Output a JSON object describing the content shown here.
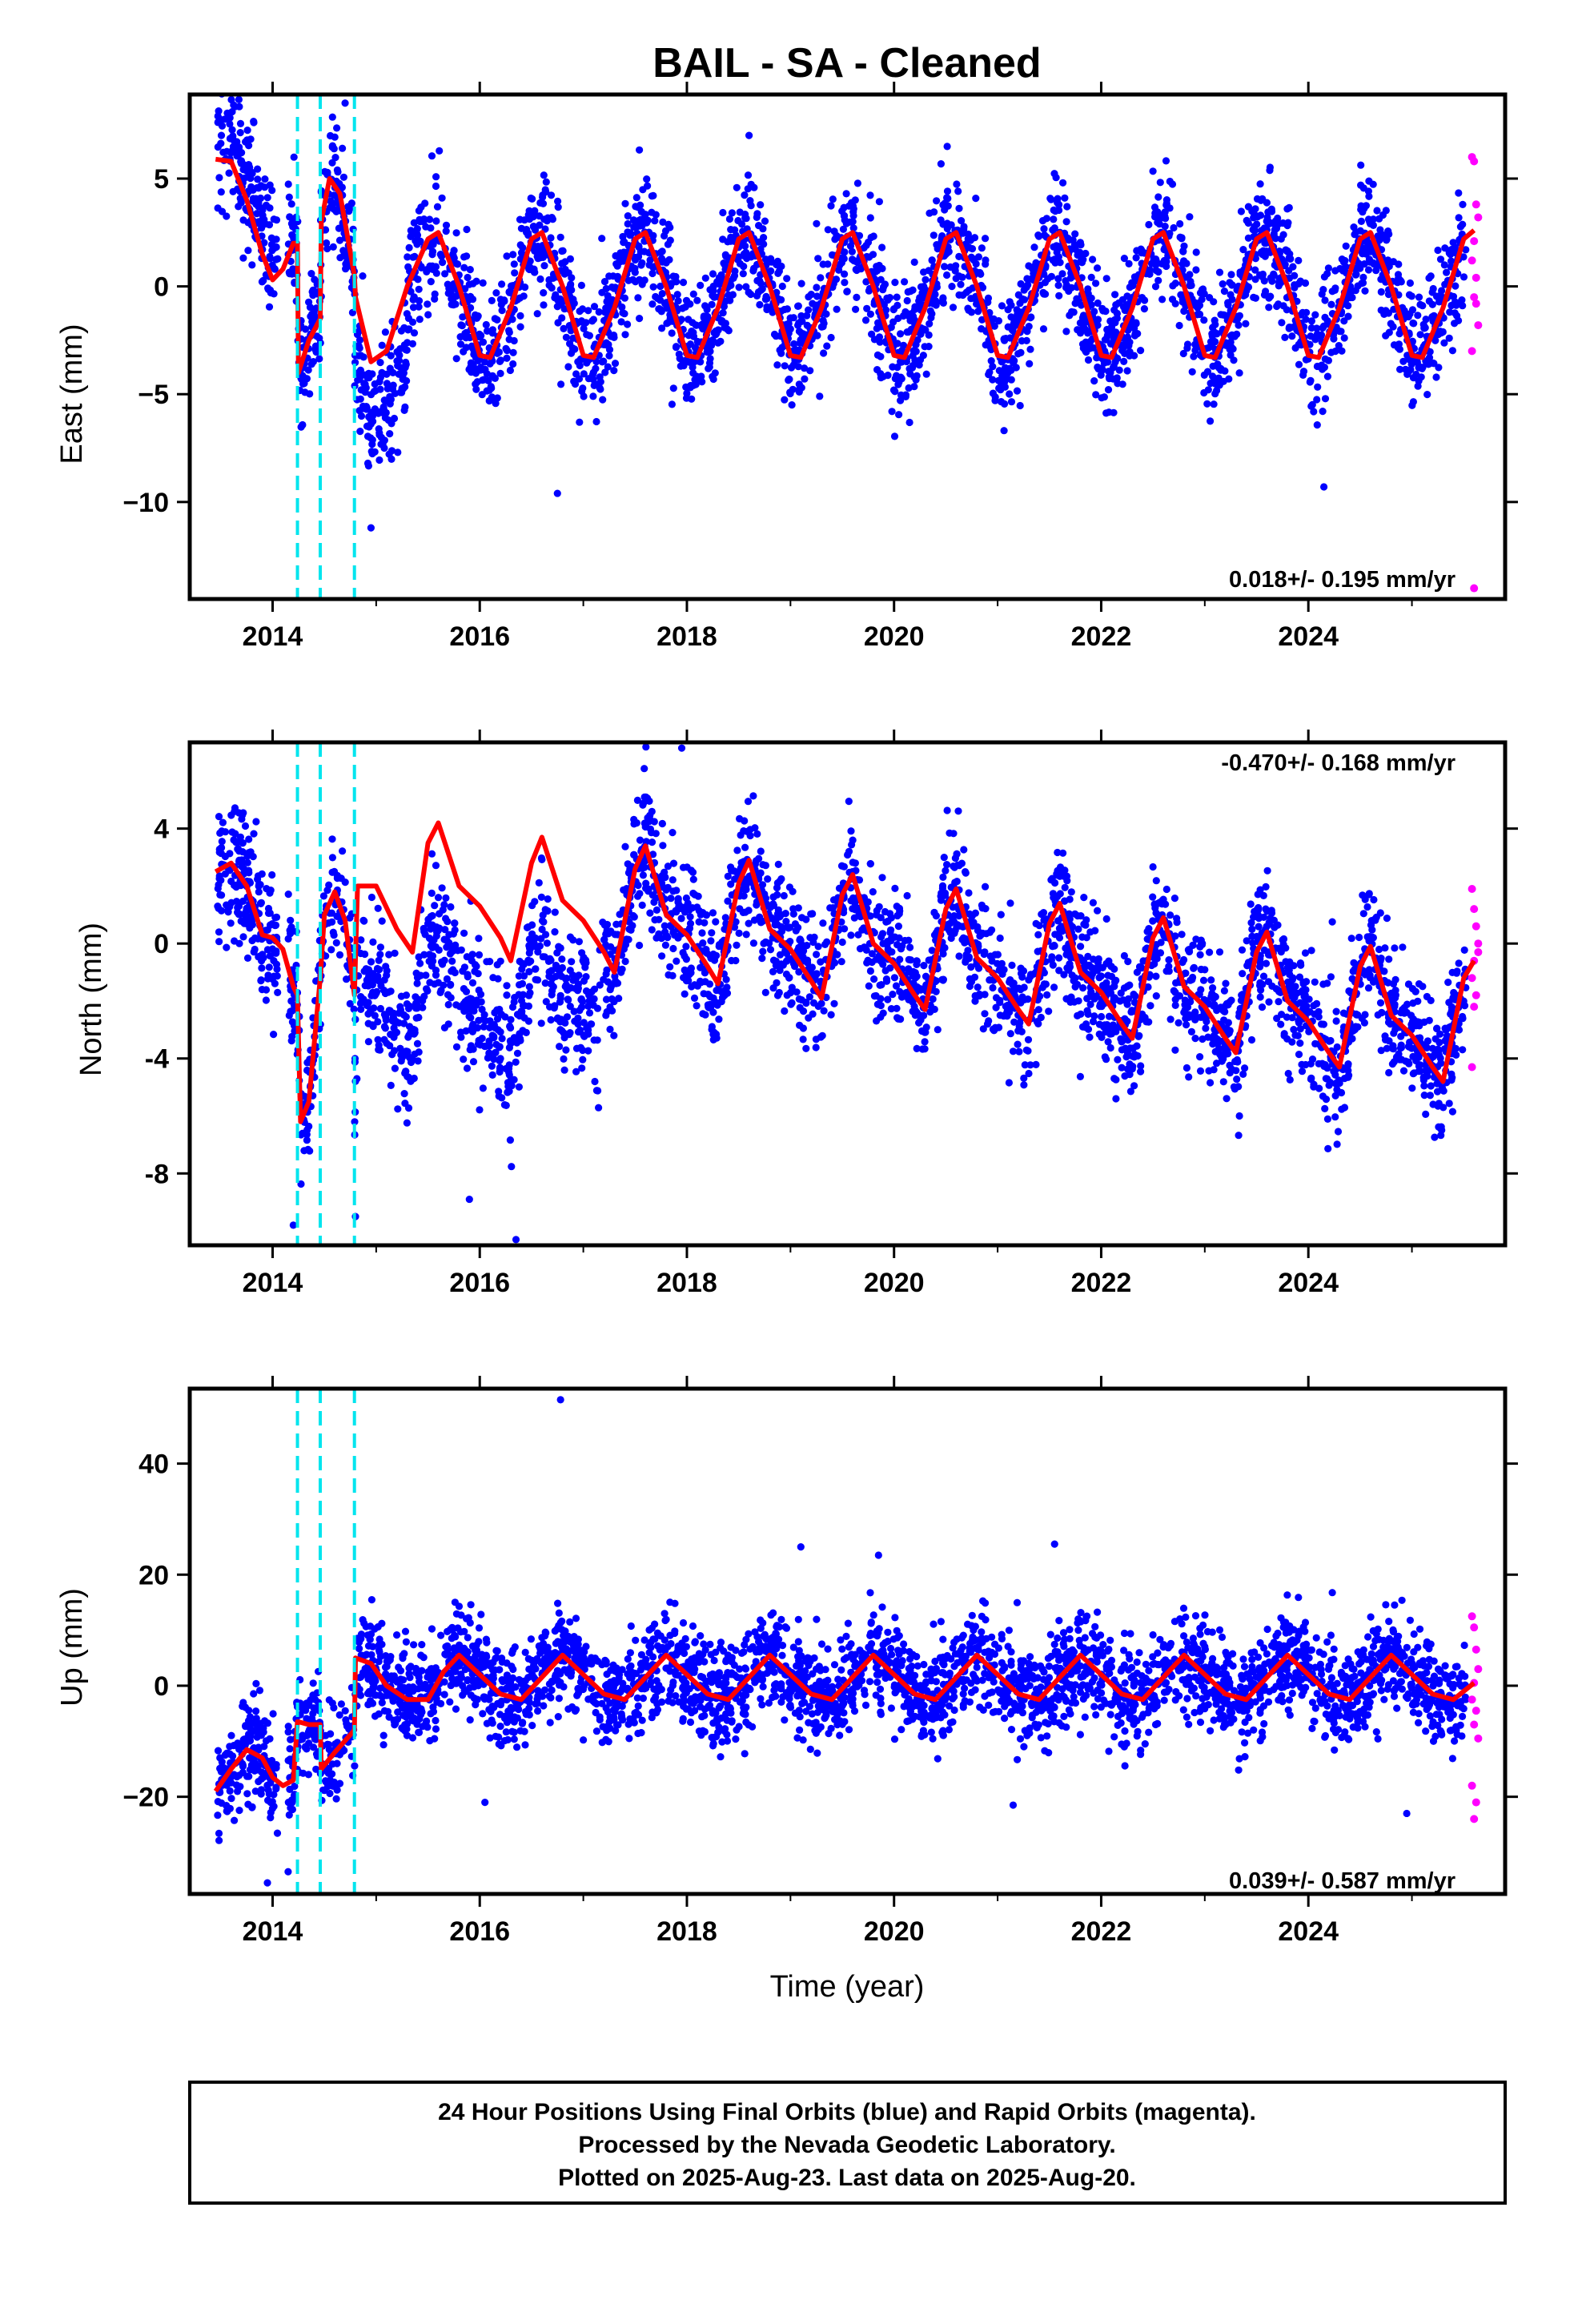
{
  "title": "BAIL  - SA - Cleaned",
  "xlabel": "Time (year)",
  "colors": {
    "final": "#0000ff",
    "rapid": "#ff00ff",
    "model": "#ff0000",
    "offset": "#00e5ee",
    "frame": "#000000"
  },
  "footer": {
    "line1": "24 Hour Positions Using Final Orbits (blue) and Rapid Orbits (magenta).",
    "line2": "Processed by the Nevada Geodetic Laboratory.",
    "line3": "Plotted on 2025-Aug-23. Last data on 2025-Aug-20."
  },
  "chart_data": [
    {
      "type": "scatter",
      "id": "east",
      "title": "BAIL  - SA - Cleaned",
      "ylabel": "East (mm)",
      "xlabel": "",
      "xlim": [
        2013.2,
        2025.9
      ],
      "ylim": [
        -14.5,
        8.9
      ],
      "xticks": [
        2014,
        2016,
        2018,
        2020,
        2022,
        2024
      ],
      "xtick_labels": [
        "2014",
        "2016",
        "2018",
        "2020",
        "2022",
        "2024"
      ],
      "yticks": [
        5,
        0,
        -5,
        -10
      ],
      "ytick_labels": [
        "5",
        "0",
        "−5",
        "−10"
      ],
      "rate_label": "0.018+/- 0.195 mm/yr",
      "rate_position": "bottom-right",
      "offsets": [
        2014.24,
        2014.46,
        2014.79
      ],
      "model": {
        "x": [
          2013.45,
          2013.6,
          2013.75,
          2013.9,
          2014.0,
          2014.1,
          2014.2,
          2014.24,
          2014.25,
          2014.35,
          2014.46,
          2014.47,
          2014.55,
          2014.65,
          2014.79,
          2014.8,
          2014.95,
          2015.1,
          2015.3,
          2015.5,
          2015.6,
          2015.8,
          2016.0,
          2016.1,
          2016.3,
          2016.5,
          2016.6,
          2016.8,
          2017.0,
          2017.1,
          2017.3,
          2017.5,
          2017.6,
          2017.8,
          2018.0,
          2018.1,
          2018.3,
          2018.5,
          2018.6,
          2018.8,
          2019.0,
          2019.1,
          2019.3,
          2019.5,
          2019.6,
          2019.8,
          2020.0,
          2020.1,
          2020.3,
          2020.5,
          2020.6,
          2020.8,
          2021.0,
          2021.1,
          2021.3,
          2021.5,
          2021.6,
          2021.8,
          2022.0,
          2022.1,
          2022.3,
          2022.5,
          2022.6,
          2022.8,
          2023.0,
          2023.1,
          2023.3,
          2023.5,
          2023.6,
          2023.8,
          2024.0,
          2024.1,
          2024.3,
          2024.5,
          2024.6,
          2024.8,
          2025.0,
          2025.1,
          2025.3,
          2025.5,
          2025.6
        ],
        "y": [
          5.9,
          5.8,
          4.0,
          1.5,
          0.3,
          0.8,
          2.0,
          2.0,
          -4.0,
          -2.5,
          -1.5,
          3.0,
          5.0,
          4.3,
          0.5,
          -0.5,
          -3.5,
          -3.0,
          0.0,
          2.2,
          2.5,
          0.0,
          -3.2,
          -3.3,
          -1.0,
          2.2,
          2.5,
          0.0,
          -3.2,
          -3.3,
          -1.0,
          2.2,
          2.5,
          0.0,
          -3.2,
          -3.3,
          -1.0,
          2.2,
          2.5,
          0.0,
          -3.2,
          -3.3,
          -1.0,
          2.2,
          2.5,
          0.0,
          -3.2,
          -3.3,
          -1.0,
          2.2,
          2.5,
          0.0,
          -3.2,
          -3.3,
          -1.0,
          2.2,
          2.5,
          0.0,
          -3.2,
          -3.3,
          -1.0,
          2.2,
          2.5,
          0.0,
          -3.2,
          -3.3,
          -1.0,
          2.2,
          2.5,
          0.0,
          -3.2,
          -3.3,
          -1.0,
          2.2,
          2.5,
          0.0,
          -3.2,
          -3.3,
          -1.0,
          2.2,
          2.6
        ]
      },
      "scatter": {
        "n": 3400,
        "x_start": 2013.47,
        "x_end": 2025.52,
        "noise": 1.4,
        "gaps": [
          [
            2014.05,
            2014.15
          ],
          [
            2015.0,
            2015.02
          ]
        ],
        "bias": [
          [
            2013.47,
            2014.05,
            1.5
          ],
          [
            2014.79,
            2015.3,
            -3.5
          ]
        ],
        "outliers": [
          [
            2016.75,
            -9.6
          ],
          [
            2014.95,
            -11.2
          ],
          [
            2024.15,
            -9.3
          ],
          [
            2018.6,
            7.0
          ],
          [
            2014.7,
            8.5
          ]
        ]
      },
      "rapid": {
        "x": [
          2025.58,
          2025.6,
          2025.62,
          2025.64,
          2025.6,
          2025.58,
          2025.62,
          2025.6,
          2025.64,
          2025.58,
          2025.62,
          2025.6
        ],
        "y": [
          6.0,
          5.8,
          3.8,
          3.2,
          2.1,
          1.2,
          0.4,
          -0.5,
          -1.8,
          -3.0,
          -0.8,
          -14.0
        ]
      }
    },
    {
      "type": "scatter",
      "id": "north",
      "ylabel": "North (mm)",
      "xlabel": "",
      "xlim": [
        2013.2,
        2025.9
      ],
      "ylim": [
        -10.5,
        7.0
      ],
      "xticks": [
        2014,
        2016,
        2018,
        2020,
        2022,
        2024
      ],
      "xtick_labels": [
        "2014",
        "2016",
        "2018",
        "2020",
        "2022",
        "2024"
      ],
      "yticks": [
        4,
        0,
        -4,
        -8
      ],
      "ytick_labels": [
        "4",
        "0",
        "-4",
        "-8"
      ],
      "rate_label": "-0.470+/- 0.168 mm/yr",
      "rate_position": "top-right",
      "offsets": [
        2014.24,
        2014.46,
        2014.79
      ],
      "model": {
        "x": [
          2013.45,
          2013.6,
          2013.75,
          2013.9,
          2014.0,
          2014.1,
          2014.2,
          2014.24,
          2014.27,
          2014.35,
          2014.46,
          2014.5,
          2014.6,
          2014.7,
          2014.79,
          2014.82,
          2015.0,
          2015.2,
          2015.35,
          2015.5,
          2015.6,
          2015.8,
          2016.0,
          2016.2,
          2016.3,
          2016.5,
          2016.6,
          2016.8,
          2017.0,
          2017.2,
          2017.3,
          2017.5,
          2017.6,
          2017.8,
          2018.0,
          2018.2,
          2018.3,
          2018.5,
          2018.6,
          2018.8,
          2019.0,
          2019.2,
          2019.3,
          2019.5,
          2019.6,
          2019.8,
          2020.0,
          2020.2,
          2020.3,
          2020.5,
          2020.6,
          2020.8,
          2021.0,
          2021.2,
          2021.3,
          2021.5,
          2021.6,
          2021.8,
          2022.0,
          2022.2,
          2022.3,
          2022.5,
          2022.6,
          2022.8,
          2023.0,
          2023.2,
          2023.3,
          2023.5,
          2023.6,
          2023.8,
          2024.0,
          2024.2,
          2024.3,
          2024.5,
          2024.6,
          2024.8,
          2025.0,
          2025.2,
          2025.3,
          2025.5,
          2025.6
        ],
        "y": [
          2.5,
          2.8,
          2.0,
          0.3,
          0.2,
          -0.2,
          -1.5,
          -1.8,
          -6.2,
          -5.5,
          -1.2,
          1.0,
          1.8,
          0.8,
          -1.8,
          2.0,
          2.0,
          0.5,
          -0.3,
          3.5,
          4.2,
          2.0,
          1.3,
          0.2,
          -0.6,
          2.8,
          3.7,
          1.5,
          0.8,
          -0.3,
          -1.0,
          2.6,
          3.4,
          1.0,
          0.3,
          -0.8,
          -1.4,
          2.1,
          2.9,
          0.5,
          -0.2,
          -1.3,
          -1.9,
          1.7,
          2.4,
          0.0,
          -0.7,
          -1.8,
          -2.3,
          1.2,
          1.9,
          -0.5,
          -1.2,
          -2.3,
          -2.8,
          0.7,
          1.4,
          -1.0,
          -1.7,
          -2.8,
          -3.3,
          0.2,
          0.9,
          -1.5,
          -2.2,
          -3.3,
          -3.8,
          -0.3,
          0.4,
          -2.0,
          -2.7,
          -3.8,
          -4.3,
          -0.8,
          -0.1,
          -2.5,
          -3.2,
          -4.3,
          -4.8,
          -1.2,
          -0.6
        ]
      },
      "scatter": {
        "n": 3400,
        "x_start": 2013.47,
        "x_end": 2025.52,
        "noise": 1.1,
        "gaps": [
          [
            2014.05,
            2014.15
          ]
        ],
        "bias": [
          [
            2014.79,
            2017.15,
            -4.3
          ]
        ],
        "outliers": [
          [
            2016.35,
            -10.3
          ],
          [
            2014.2,
            -9.8
          ],
          [
            2014.8,
            -9.5
          ],
          [
            2017.95,
            6.8
          ],
          [
            2015.9,
            -8.9
          ]
        ]
      },
      "rapid": {
        "x": [
          2025.58,
          2025.6,
          2025.62,
          2025.64,
          2025.6,
          2025.58,
          2025.62,
          2025.6,
          2025.64,
          2025.58
        ],
        "y": [
          1.9,
          1.2,
          0.6,
          0.0,
          -0.6,
          -1.2,
          -1.8,
          -2.2,
          -0.3,
          -4.3
        ]
      }
    },
    {
      "type": "scatter",
      "id": "up",
      "ylabel": "Up (mm)",
      "xlabel": "Time (year)",
      "xlim": [
        2013.2,
        2025.9
      ],
      "ylim": [
        -37.5,
        53.5
      ],
      "xticks": [
        2014,
        2016,
        2018,
        2020,
        2022,
        2024
      ],
      "xtick_labels": [
        "2014",
        "2016",
        "2018",
        "2020",
        "2022",
        "2024"
      ],
      "yticks": [
        40,
        20,
        0,
        -20
      ],
      "ytick_labels": [
        "40",
        "20",
        "0",
        "−20"
      ],
      "rate_label": "0.039+/- 0.587 mm/yr",
      "rate_position": "bottom-right",
      "offsets": [
        2014.24,
        2014.46,
        2014.79
      ],
      "model": {
        "x": [
          2013.45,
          2013.6,
          2013.75,
          2013.9,
          2014.0,
          2014.1,
          2014.2,
          2014.24,
          2014.25,
          2014.35,
          2014.46,
          2014.47,
          2014.6,
          2014.79,
          2014.8,
          2014.95,
          2015.1,
          2015.3,
          2015.5,
          2015.65,
          2015.8,
          2016.0,
          2016.2,
          2016.4,
          2016.65,
          2016.8,
          2017.0,
          2017.2,
          2017.4,
          2017.65,
          2017.8,
          2018.0,
          2018.2,
          2018.4,
          2018.65,
          2018.8,
          2019.0,
          2019.2,
          2019.4,
          2019.65,
          2019.8,
          2020.0,
          2020.2,
          2020.4,
          2020.65,
          2020.8,
          2021.0,
          2021.2,
          2021.4,
          2021.65,
          2021.8,
          2022.0,
          2022.2,
          2022.4,
          2022.65,
          2022.8,
          2023.0,
          2023.2,
          2023.4,
          2023.65,
          2023.8,
          2024.0,
          2024.2,
          2024.4,
          2024.65,
          2024.8,
          2025.0,
          2025.2,
          2025.4,
          2025.6
        ],
        "y": [
          -19.0,
          -15.0,
          -11.5,
          -13.0,
          -16.5,
          -18.0,
          -17.0,
          -6.5,
          -6.5,
          -7.0,
          -7.0,
          -15.0,
          -12.0,
          -8.0,
          5.0,
          4.0,
          0.0,
          -2.5,
          -2.5,
          2.5,
          5.5,
          2.0,
          -1.5,
          -2.5,
          2.5,
          5.5,
          2.0,
          -1.5,
          -2.5,
          2.5,
          5.5,
          2.0,
          -1.5,
          -2.5,
          2.5,
          5.5,
          2.0,
          -1.5,
          -2.5,
          2.5,
          5.5,
          2.0,
          -1.5,
          -2.5,
          2.5,
          5.5,
          2.0,
          -1.5,
          -2.5,
          2.5,
          5.5,
          2.0,
          -1.5,
          -2.5,
          2.5,
          5.5,
          2.0,
          -1.5,
          -2.5,
          2.5,
          5.5,
          2.0,
          -1.5,
          -2.5,
          2.5,
          5.5,
          2.0,
          -1.5,
          -2.5,
          0.5
        ]
      },
      "scatter": {
        "n": 3400,
        "x_start": 2013.47,
        "x_end": 2025.52,
        "noise": 4.3,
        "gaps": [
          [
            2014.05,
            2014.15
          ]
        ],
        "bias": [],
        "outliers": [
          [
            2016.78,
            51.5
          ],
          [
            2019.1,
            25.0
          ],
          [
            2019.85,
            23.5
          ],
          [
            2021.55,
            25.5
          ],
          [
            2013.95,
            -35.5
          ],
          [
            2014.15,
            -33.5
          ],
          [
            2024.95,
            -23.0
          ],
          [
            2021.15,
            -21.5
          ],
          [
            2016.05,
            -21.0
          ]
        ]
      },
      "rapid": {
        "x": [
          2025.58,
          2025.6,
          2025.62,
          2025.64,
          2025.6,
          2025.58,
          2025.62,
          2025.6,
          2025.64,
          2025.58,
          2025.62,
          2025.6
        ],
        "y": [
          12.5,
          10.5,
          6.5,
          3.0,
          0.5,
          -2.5,
          -4.5,
          -7.0,
          -9.5,
          -18.0,
          -21.0,
          -24.0
        ]
      }
    }
  ]
}
